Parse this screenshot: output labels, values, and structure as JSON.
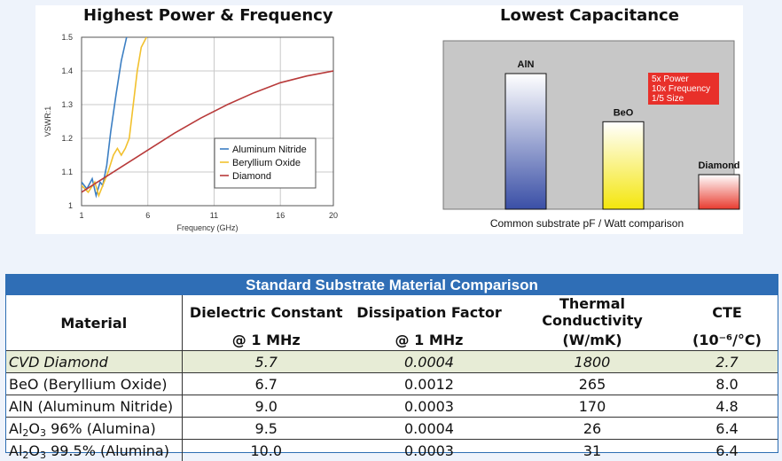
{
  "chart_data": [
    {
      "type": "line",
      "title": "Highest Power & Frequency",
      "xlabel": "Frequency (GHz)",
      "ylabel": "VSWR:1",
      "xlim": [
        1,
        20
      ],
      "ylim": [
        1,
        1.5
      ],
      "x_ticks": [
        "1",
        "6",
        "11",
        "16",
        "20"
      ],
      "y_ticks": [
        "1",
        "1.1",
        "1.2",
        "1.3",
        "1.4",
        "1.5"
      ],
      "legend_position": "center-right",
      "series": [
        {
          "name": "Aluminum Nitride",
          "color": "#3c7fc3",
          "x": [
            1.0,
            1.4,
            1.8,
            2.1,
            2.4,
            2.6,
            2.9,
            3.2,
            3.6,
            4.0,
            4.4
          ],
          "y": [
            1.07,
            1.05,
            1.08,
            1.03,
            1.07,
            1.06,
            1.12,
            1.22,
            1.33,
            1.43,
            1.5
          ]
        },
        {
          "name": "Beryllium Oxide",
          "color": "#f2c12e",
          "x": [
            1.0,
            1.5,
            2.0,
            2.3,
            2.6,
            3.0,
            3.4,
            3.7,
            4.0,
            4.3,
            4.6,
            4.9,
            5.2,
            5.5,
            5.9
          ],
          "y": [
            1.06,
            1.04,
            1.07,
            1.03,
            1.06,
            1.1,
            1.15,
            1.17,
            1.15,
            1.17,
            1.2,
            1.3,
            1.4,
            1.47,
            1.5
          ]
        },
        {
          "name": "Diamond",
          "color": "#b83a3a",
          "x": [
            1,
            2,
            3,
            4,
            5,
            6,
            8,
            10,
            12,
            14,
            16,
            18,
            20
          ],
          "y": [
            1.04,
            1.065,
            1.09,
            1.115,
            1.14,
            1.165,
            1.215,
            1.26,
            1.3,
            1.335,
            1.365,
            1.385,
            1.4
          ]
        }
      ]
    },
    {
      "type": "bar",
      "title": "Lowest Capacitance",
      "xlabel": "Common substrate pF / Watt comparison",
      "categories": [
        "AlN",
        "BeO",
        "Diamond"
      ],
      "values": [
        1.0,
        0.645,
        0.255
      ],
      "colors": [
        "#3a4fa6",
        "#f4e60c",
        "#e83b2f"
      ],
      "annotation": [
        "5x Power",
        "10x Frequency",
        "1/5 Size"
      ]
    }
  ],
  "table": {
    "title": "Standard Substrate Material Comparison",
    "headers": {
      "material": "Material",
      "dielectric": [
        "Dielectric Constant",
        "@ 1 MHz"
      ],
      "dissipation": [
        "Dissipation Factor",
        "@ 1 MHz"
      ],
      "thermal": [
        "Thermal Conductivity",
        "(W/mK)"
      ],
      "cte": [
        "CTE",
        "(10⁻⁶/°C)"
      ]
    },
    "rows": [
      {
        "material": "CVD Diamond",
        "dielectric": "5.7",
        "dissipation": "0.0004",
        "thermal": "1800",
        "cte": "2.7"
      },
      {
        "material": "BeO (Beryllium Oxide)",
        "dielectric": "6.7",
        "dissipation": "0.0012",
        "thermal": "265",
        "cte": "8.0"
      },
      {
        "material": "AlN (Aluminum Nitride)",
        "dielectric": "9.0",
        "dissipation": "0.0003",
        "thermal": "170",
        "cte": "4.8"
      },
      {
        "material_parts": [
          "Al",
          "2",
          "O",
          "3",
          " 96% (Alumina)"
        ],
        "dielectric": "9.5",
        "dissipation": "0.0004",
        "thermal": "26",
        "cte": "6.4"
      },
      {
        "material_parts": [
          "Al",
          "2",
          "O",
          "3",
          " 99.5% (Alumina)"
        ],
        "dielectric": "10.0",
        "dissipation": "0.0003",
        "thermal": "31",
        "cte": "6.4"
      }
    ]
  }
}
